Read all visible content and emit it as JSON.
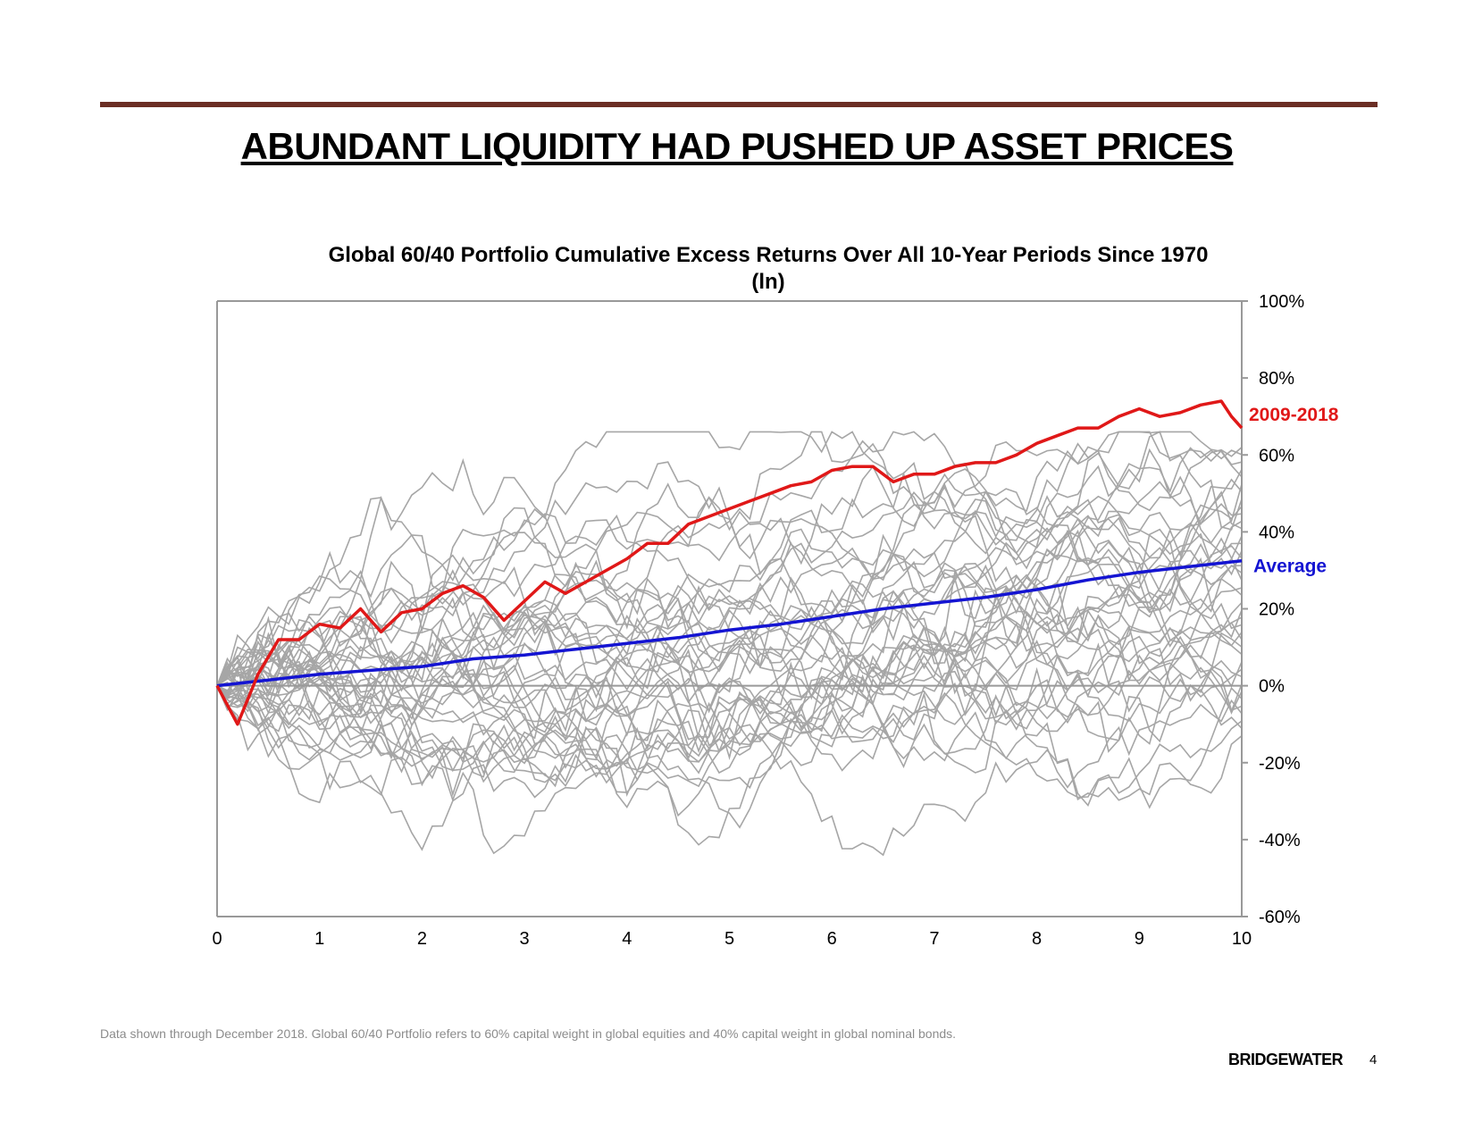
{
  "colors": {
    "rule": "#6b2e24",
    "highlight": "#e01818",
    "average": "#1414d2",
    "paths": "#a6a6a6",
    "axis": "#999999"
  },
  "page": {
    "headline": "ABUNDANT LIQUIDITY HAD PUSHED UP ASSET PRICES",
    "footnote": "Data shown through December 2018. Global 60/40 Portfolio refers to 60% capital weight in global equities and 40% capital weight in global nominal bonds.",
    "brand": "BRIDGEWATER",
    "page_number": "4"
  },
  "chart_data": {
    "type": "line",
    "title": "Global 60/40 Portfolio Cumulative Excess Returns Over All 10-Year Periods Since 1970",
    "subtitle": "(ln)",
    "xlabel": "",
    "ylabel": "",
    "xlim": [
      0,
      10
    ],
    "ylim": [
      -60,
      100
    ],
    "x_ticks": [
      "0",
      "1",
      "2",
      "3",
      "4",
      "5",
      "6",
      "7",
      "8",
      "9",
      "10"
    ],
    "y_ticks": [
      "100%",
      "80%",
      "60%",
      "40%",
      "20%",
      "0%",
      "-20%",
      "-40%",
      "-60%"
    ],
    "y_tick_values": [
      100,
      80,
      60,
      40,
      20,
      0,
      -20,
      -40,
      -60
    ],
    "grid": false,
    "highlight_series": {
      "name": "2009-2018",
      "points": [
        [
          0,
          0
        ],
        [
          0.2,
          -10
        ],
        [
          0.4,
          3
        ],
        [
          0.6,
          12
        ],
        [
          0.8,
          12
        ],
        [
          1,
          16
        ],
        [
          1.2,
          15
        ],
        [
          1.4,
          20
        ],
        [
          1.6,
          14
        ],
        [
          1.8,
          19
        ],
        [
          2,
          20
        ],
        [
          2.2,
          24
        ],
        [
          2.4,
          26
        ],
        [
          2.6,
          23
        ],
        [
          2.8,
          17
        ],
        [
          3,
          22
        ],
        [
          3.2,
          27
        ],
        [
          3.4,
          24
        ],
        [
          3.6,
          27
        ],
        [
          3.8,
          30
        ],
        [
          4,
          33
        ],
        [
          4.2,
          37
        ],
        [
          4.4,
          37
        ],
        [
          4.6,
          42
        ],
        [
          4.8,
          44
        ],
        [
          5,
          46
        ],
        [
          5.2,
          48
        ],
        [
          5.4,
          50
        ],
        [
          5.6,
          52
        ],
        [
          5.8,
          53
        ],
        [
          6,
          56
        ],
        [
          6.2,
          57
        ],
        [
          6.4,
          57
        ],
        [
          6.6,
          53
        ],
        [
          6.8,
          55
        ],
        [
          7,
          55
        ],
        [
          7.2,
          57
        ],
        [
          7.4,
          58
        ],
        [
          7.6,
          58
        ],
        [
          7.8,
          60
        ],
        [
          8,
          63
        ],
        [
          8.2,
          65
        ],
        [
          8.4,
          67
        ],
        [
          8.6,
          67
        ],
        [
          8.8,
          70
        ],
        [
          9,
          72
        ],
        [
          9.2,
          70
        ],
        [
          9.4,
          71
        ],
        [
          9.6,
          73
        ],
        [
          9.8,
          74
        ],
        [
          9.9,
          70
        ],
        [
          10,
          67
        ]
      ]
    },
    "average_series": {
      "name": "Average",
      "points": [
        [
          0,
          0
        ],
        [
          0.5,
          1.5
        ],
        [
          1,
          3
        ],
        [
          1.5,
          4
        ],
        [
          2,
          5
        ],
        [
          2.5,
          7
        ],
        [
          3,
          8
        ],
        [
          3.5,
          9.5
        ],
        [
          4,
          11
        ],
        [
          4.5,
          12.5
        ],
        [
          5,
          14.5
        ],
        [
          5.5,
          16
        ],
        [
          6,
          18
        ],
        [
          6.5,
          20
        ],
        [
          7,
          21.5
        ],
        [
          7.5,
          23
        ],
        [
          8,
          25
        ],
        [
          8.5,
          27.5
        ],
        [
          9,
          29.5
        ],
        [
          9.5,
          31
        ],
        [
          10,
          32.5
        ]
      ]
    },
    "background_series_count": 40,
    "background_series_endpoint_range": [
      -13,
      62
    ]
  }
}
